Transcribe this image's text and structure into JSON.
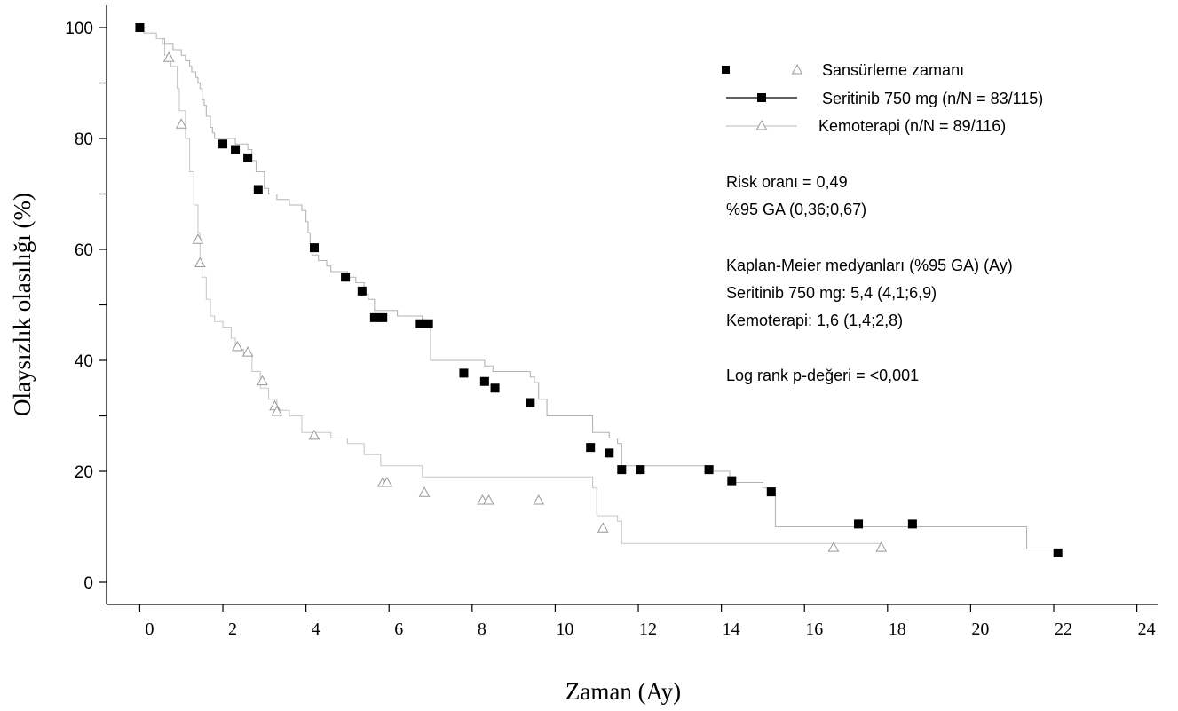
{
  "chart_data": {
    "type": "line",
    "xlabel": "Zaman (Ay)",
    "ylabel": "Olaysızlık olasılığı (%)",
    "xlim": [
      -0.8,
      24.5
    ],
    "ylim": [
      -4,
      104
    ],
    "x_ticks": [
      "0",
      "2",
      "4",
      "6",
      "8",
      "10",
      "12",
      "14",
      "16",
      "18",
      "20",
      "22",
      "24"
    ],
    "x_tick_values": [
      0,
      2,
      4,
      6,
      8,
      10,
      12,
      14,
      16,
      18,
      20,
      22,
      24
    ],
    "y_ticks": [
      "100",
      "80",
      "60",
      "40",
      "20",
      "0"
    ],
    "y_tick_values": [
      100,
      80,
      60,
      40,
      20,
      0
    ],
    "y_minor_ticks": [
      90,
      70,
      50,
      30
    ],
    "legend": {
      "censor_label": "Sansürleme zamanı",
      "entries": [
        "Seritinib 750 mg (n/N = 83/115)",
        "Kemoterapi (n/N = 89/116)"
      ]
    },
    "annotations": {
      "hr": "Risk oranı  = 0,49",
      "hr_ci": "%95 GA (0,36;0,67)",
      "km_title": "Kaplan-Meier medyanları (%95 GA) (Ay)",
      "km_seritinib": "Seritinib 750 mg: 5,4 (4,1;6,9)",
      "km_kemo": "Kemoterapi: 1,6 (1,4;2,8)",
      "logrank": "Log rank p-değeri = <0,001"
    },
    "series": [
      {
        "name": "Seritinib 750 mg (n/N = 83/115)",
        "marker": "filled-square",
        "color": "#000000",
        "line_color": "#b4b4b4",
        "steps": [
          [
            0,
            100
          ],
          [
            0.1,
            99
          ],
          [
            0.4,
            98
          ],
          [
            0.6,
            97
          ],
          [
            0.8,
            96
          ],
          [
            1.0,
            95
          ],
          [
            1.1,
            94
          ],
          [
            1.2,
            93
          ],
          [
            1.25,
            92
          ],
          [
            1.35,
            91
          ],
          [
            1.4,
            90
          ],
          [
            1.45,
            89
          ],
          [
            1.5,
            87
          ],
          [
            1.55,
            86
          ],
          [
            1.6,
            84
          ],
          [
            1.7,
            82
          ],
          [
            1.75,
            81
          ],
          [
            1.8,
            80
          ],
          [
            2.3,
            79
          ],
          [
            2.6,
            78
          ],
          [
            2.7,
            76
          ],
          [
            2.8,
            74
          ],
          [
            3.0,
            71
          ],
          [
            3.1,
            70
          ],
          [
            3.3,
            69
          ],
          [
            3.6,
            68
          ],
          [
            3.9,
            67
          ],
          [
            4.0,
            65
          ],
          [
            4.05,
            63
          ],
          [
            4.1,
            61
          ],
          [
            4.15,
            59
          ],
          [
            4.3,
            58
          ],
          [
            4.5,
            57
          ],
          [
            4.6,
            56
          ],
          [
            5.0,
            55
          ],
          [
            5.2,
            54
          ],
          [
            5.4,
            52
          ],
          [
            5.5,
            51
          ],
          [
            5.65,
            49
          ],
          [
            6.2,
            48
          ],
          [
            6.8,
            47
          ],
          [
            6.9,
            46
          ],
          [
            7.0,
            40
          ],
          [
            7.2,
            40
          ],
          [
            7.9,
            40
          ],
          [
            8.3,
            39
          ],
          [
            8.5,
            38
          ],
          [
            9.4,
            37
          ],
          [
            9.5,
            36
          ],
          [
            9.6,
            33
          ],
          [
            9.8,
            30
          ],
          [
            10.9,
            27
          ],
          [
            11.3,
            26
          ],
          [
            11.5,
            25
          ],
          [
            11.6,
            21
          ],
          [
            13.6,
            21
          ],
          [
            13.8,
            20
          ],
          [
            14.2,
            18
          ],
          [
            15.0,
            17
          ],
          [
            15.3,
            10
          ],
          [
            16.0,
            10
          ],
          [
            21.3,
            10
          ],
          [
            21.35,
            6
          ]
        ],
        "end_x": 22.1,
        "censor_times": [
          [
            0,
            100
          ],
          [
            2.0,
            79
          ],
          [
            2.3,
            78
          ],
          [
            2.6,
            76.5
          ],
          [
            2.85,
            70.8
          ],
          [
            4.2,
            60.3
          ],
          [
            4.95,
            55
          ],
          [
            5.35,
            52.5
          ],
          [
            5.65,
            47.7
          ],
          [
            5.85,
            47.7
          ],
          [
            6.75,
            46.6
          ],
          [
            6.95,
            46.6
          ],
          [
            7.8,
            37.7
          ],
          [
            8.3,
            36.2
          ],
          [
            8.55,
            35
          ],
          [
            9.4,
            32.4
          ],
          [
            10.85,
            24.3
          ],
          [
            11.3,
            23.3
          ],
          [
            11.6,
            20.3
          ],
          [
            12.05,
            20.3
          ],
          [
            13.7,
            20.3
          ],
          [
            14.25,
            18.3
          ],
          [
            15.2,
            16.3
          ],
          [
            17.3,
            10.5
          ],
          [
            18.6,
            10.5
          ],
          [
            22.1,
            5.3
          ]
        ]
      },
      {
        "name": "Kemoterapi (n/N = 89/116)",
        "marker": "open-triangle",
        "color": "#999999",
        "line_color": "#c8c8c8",
        "steps": [
          [
            0,
            100
          ],
          [
            0.15,
            99
          ],
          [
            0.4,
            98
          ],
          [
            0.55,
            97
          ],
          [
            0.6,
            95
          ],
          [
            0.75,
            93
          ],
          [
            0.9,
            89
          ],
          [
            0.95,
            85
          ],
          [
            1.1,
            80
          ],
          [
            1.2,
            74
          ],
          [
            1.3,
            68
          ],
          [
            1.4,
            63
          ],
          [
            1.45,
            58
          ],
          [
            1.5,
            55
          ],
          [
            1.6,
            51
          ],
          [
            1.7,
            48
          ],
          [
            1.8,
            47
          ],
          [
            2.0,
            46
          ],
          [
            2.2,
            44
          ],
          [
            2.3,
            42
          ],
          [
            2.5,
            41
          ],
          [
            2.7,
            38
          ],
          [
            2.9,
            35
          ],
          [
            3.1,
            33
          ],
          [
            3.3,
            31
          ],
          [
            3.6,
            30
          ],
          [
            3.9,
            27
          ],
          [
            4.6,
            26
          ],
          [
            5.0,
            25
          ],
          [
            5.4,
            23
          ],
          [
            5.8,
            21
          ],
          [
            6.2,
            21
          ],
          [
            6.8,
            19
          ],
          [
            10.9,
            17
          ],
          [
            11.0,
            12
          ],
          [
            11.5,
            11
          ],
          [
            11.6,
            7
          ],
          [
            17.85,
            7
          ]
        ],
        "end_x": 17.85,
        "censor_times": [
          [
            0.7,
            94.6
          ],
          [
            1.0,
            82.6
          ],
          [
            1.4,
            61.8
          ],
          [
            1.45,
            57.6
          ],
          [
            2.35,
            42.5
          ],
          [
            2.6,
            41.5
          ],
          [
            2.95,
            36.3
          ],
          [
            3.25,
            31.8
          ],
          [
            3.3,
            30.8
          ],
          [
            4.2,
            26.5
          ],
          [
            5.85,
            18.0
          ],
          [
            5.95,
            18.0
          ],
          [
            6.85,
            16.2
          ],
          [
            8.25,
            14.8
          ],
          [
            8.4,
            14.8
          ],
          [
            9.6,
            14.8
          ],
          [
            11.15,
            9.8
          ],
          [
            16.7,
            6.3
          ],
          [
            17.85,
            6.3
          ]
        ]
      }
    ]
  }
}
